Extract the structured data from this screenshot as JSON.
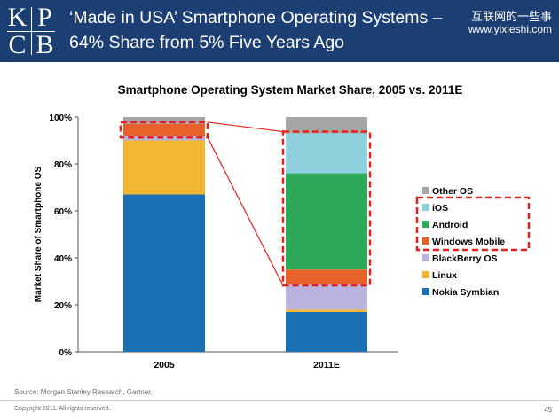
{
  "header": {
    "logo_letters": [
      "K",
      "P",
      "C",
      "B"
    ],
    "title_line1": "‘Made in USA’ Smartphone Operating Systems –",
    "title_line2": "64% Share from 5% Five Years Ago",
    "watermark_line1": "互联网的一些事",
    "watermark_line2": "www.yixieshi.com"
  },
  "colors": {
    "header_bg": "#1c3f73",
    "highlight": "#e8201c"
  },
  "chart_data": {
    "type": "bar",
    "stacked": true,
    "percent_stacked": true,
    "title": "Smartphone Operating System Market Share, 2005 vs. 2011E",
    "xlabel": "",
    "ylabel": "Market Share of Smartphone OS",
    "ylim": [
      0,
      100
    ],
    "yticks": [
      "0%",
      "20%",
      "40%",
      "60%",
      "80%",
      "100%"
    ],
    "categories": [
      "2005",
      "2011E"
    ],
    "series": [
      {
        "name": "Nokia Symbian",
        "color": "#1b6fb3",
        "values": [
          67,
          17
        ]
      },
      {
        "name": "Linux",
        "color": "#f2b632",
        "values": [
          23,
          1
        ]
      },
      {
        "name": "BlackBerry OS",
        "color": "#b8b4df",
        "values": [
          2,
          11
        ]
      },
      {
        "name": "Windows Mobile",
        "color": "#e8602a",
        "values": [
          5,
          6
        ]
      },
      {
        "name": "Android",
        "color": "#2ea859",
        "values": [
          0,
          41
        ]
      },
      {
        "name": "iOS",
        "color": "#8fd0df",
        "values": [
          0,
          17
        ]
      },
      {
        "name": "Other OS",
        "color": "#a5a5a5",
        "values": [
          3,
          7
        ]
      }
    ],
    "legend_order": [
      "Other OS",
      "iOS",
      "Android",
      "Windows Mobile",
      "BlackBerry OS",
      "Linux",
      "Nokia Symbian"
    ],
    "highlighted_series": [
      "iOS",
      "Android",
      "Windows Mobile"
    ],
    "legend_position": "right"
  },
  "footer": {
    "source": "Source: Morgan Stanley Research, Gartner.",
    "copyright": "Copyright 2011. All rights reserved.",
    "page_number": "45"
  }
}
